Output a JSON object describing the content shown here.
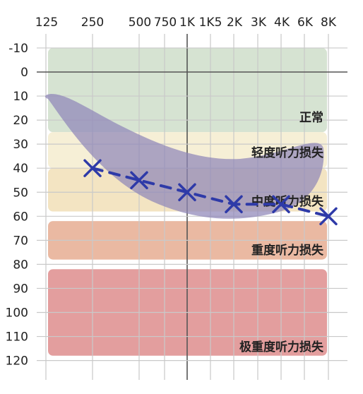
{
  "chart_data": {
    "type": "line",
    "title": "",
    "xlabel": "",
    "ylabel": "",
    "x_ticks": [
      "125",
      "250",
      "500",
      "750",
      "1K",
      "1K5",
      "2K",
      "3K",
      "4K",
      "6K",
      "8K"
    ],
    "y_ticks": [
      -10,
      0,
      10,
      20,
      30,
      40,
      50,
      60,
      70,
      80,
      90,
      100,
      110,
      120
    ],
    "ylim": [
      -10,
      120
    ],
    "y_inverted": true,
    "grid": true,
    "bands": [
      {
        "label": "正常",
        "from": -10,
        "to": 25,
        "color": "#d6e3d2"
      },
      {
        "label": "轻度听力损失",
        "from": 25,
        "to": 40,
        "color": "#f6efd6"
      },
      {
        "label": "中度听力损失",
        "from": 40,
        "to": 58,
        "color": "#f3e4c2"
      },
      {
        "label": "重度听力损失",
        "from": 62,
        "to": 78,
        "color": "#eab9a2"
      },
      {
        "label": "极重度听力损失",
        "from": 82,
        "to": 118,
        "color": "#e39e9e"
      }
    ],
    "speech_banana": {
      "color": "#8f86b8"
    },
    "series": [
      {
        "marker": "x",
        "color": "#2e3aa8",
        "x": [
          "250",
          "500",
          "1K",
          "2K",
          "4K",
          "8K"
        ],
        "values": [
          40,
          45,
          50,
          55,
          55,
          60
        ]
      }
    ]
  }
}
